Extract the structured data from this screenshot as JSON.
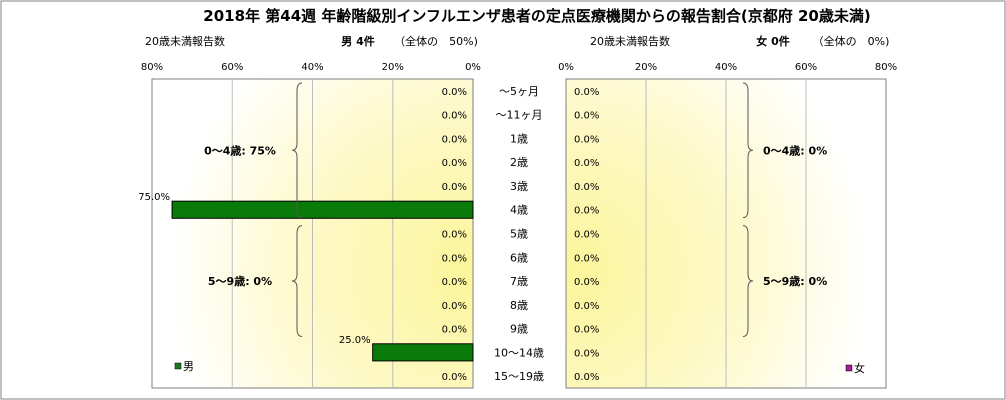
{
  "chart_data": {
    "type": "bar",
    "title": "2018年 第44週 年齢階級別インフルエンザ患者の定点医療機関からの報告割合(京都府 20歳未満)",
    "age_labels": [
      "～5ヶ月",
      "～11ヶ月",
      "1歳",
      "2歳",
      "3歳",
      "4歳",
      "5歳",
      "6歳",
      "7歳",
      "8歳",
      "9歳",
      "10～14歳",
      "15～19歳"
    ],
    "xlim": [
      0,
      80
    ],
    "tick_labels": [
      "0%",
      "20%",
      "40%",
      "60%",
      "80%"
    ],
    "grid": true,
    "panels": [
      {
        "name": "男",
        "axis_label": "20歳未満報告数",
        "header": "男 4件",
        "share": "（全体の　50%)",
        "legend": "男",
        "legend_color": "#1f7a1f",
        "bar_color": "#0a7a0a",
        "values": [
          0,
          0,
          0,
          0,
          0,
          75,
          0,
          0,
          0,
          0,
          0,
          25,
          0
        ],
        "value_labels": [
          "0.0%",
          "0.0%",
          "0.0%",
          "0.0%",
          "0.0%",
          "75.0%",
          "0.0%",
          "0.0%",
          "0.0%",
          "0.0%",
          "0.0%",
          "25.0%",
          "0.0%"
        ],
        "groups": [
          {
            "label": "0～4歳: 75%",
            "from": 0,
            "to": 5
          },
          {
            "label": "5～9歳: 0%",
            "from": 6,
            "to": 10
          }
        ]
      },
      {
        "name": "女",
        "axis_label": "20歳未満報告数",
        "header": "女 0件",
        "share": "（全体の　0%)",
        "legend": "女",
        "legend_color": "#a0208f",
        "bar_color": "#a0208f",
        "values": [
          0,
          0,
          0,
          0,
          0,
          0,
          0,
          0,
          0,
          0,
          0,
          0,
          0
        ],
        "value_labels": [
          "0.0%",
          "0.0%",
          "0.0%",
          "0.0%",
          "0.0%",
          "0.0%",
          "0.0%",
          "0.0%",
          "0.0%",
          "0.0%",
          "0.0%",
          "0.0%",
          "0.0%"
        ],
        "groups": [
          {
            "label": "0～4歳: 0%",
            "from": 0,
            "to": 5
          },
          {
            "label": "5～9歳: 0%",
            "from": 6,
            "to": 10
          }
        ]
      }
    ]
  }
}
